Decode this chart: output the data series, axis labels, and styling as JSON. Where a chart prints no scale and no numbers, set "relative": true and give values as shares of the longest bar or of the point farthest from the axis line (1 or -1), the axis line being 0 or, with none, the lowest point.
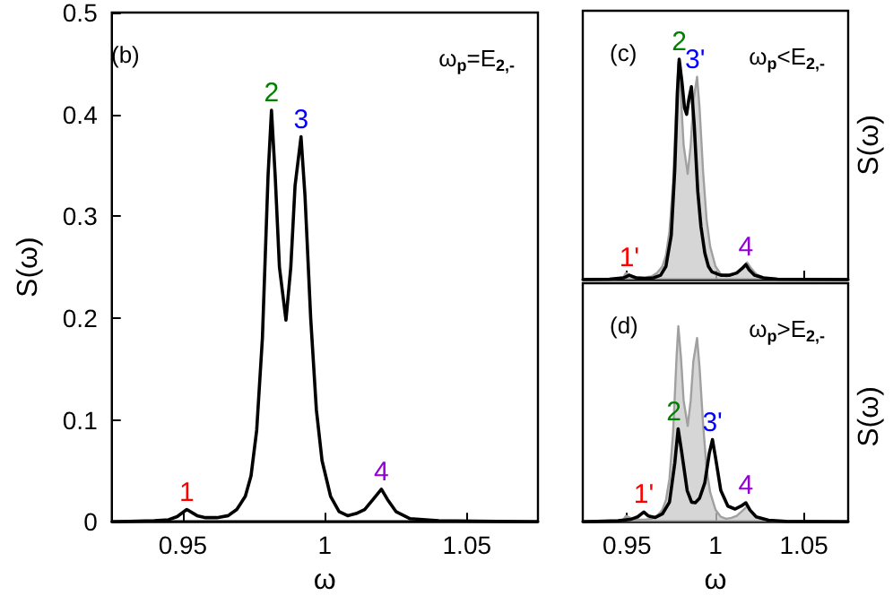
{
  "chart_data": [
    {
      "type": "line",
      "title": "(b)",
      "subtitle": "ω$_{p}$=E$_{2,-}$",
      "xlabel": "ω",
      "ylabel": "S(ω)",
      "xlim": [
        0.925,
        1.075
      ],
      "xticks": [
        0.95,
        1,
        1.05
      ],
      "ylim": [
        0,
        0.5
      ],
      "yticks": [
        0,
        0.1,
        0.2,
        0.3,
        0.4,
        0.5
      ],
      "series": [
        {
          "color": "#000000",
          "x": [
            0.925,
            0.94,
            0.945,
            0.948,
            0.9514,
            0.955,
            0.958,
            0.962,
            0.966,
            0.969,
            0.972,
            0.974,
            0.976,
            0.978,
            0.979,
            0.98,
            0.9812,
            0.9825,
            0.984,
            0.9863,
            0.988,
            0.9895,
            0.9916,
            0.993,
            0.995,
            0.997,
            0.999,
            1.002,
            1.005,
            1.008,
            1.011,
            1.014,
            1.017,
            1.0199,
            1.022,
            1.025,
            1.03,
            1.04,
            1.075
          ],
          "values": [
            0,
            0.001,
            0.002,
            0.005,
            0.012,
            0.006,
            0.004,
            0.004,
            0.006,
            0.012,
            0.025,
            0.045,
            0.09,
            0.18,
            0.26,
            0.34,
            0.404,
            0.34,
            0.25,
            0.198,
            0.25,
            0.33,
            0.378,
            0.32,
            0.2,
            0.11,
            0.06,
            0.025,
            0.01,
            0.006,
            0.008,
            0.012,
            0.022,
            0.032,
            0.022,
            0.01,
            0.003,
            0.001,
            0
          ]
        }
      ],
      "annotations": [
        {
          "text": "1",
          "x": 0.9514,
          "y": 0.012
        },
        {
          "text": "2",
          "x": 0.9812,
          "y": 0.404
        },
        {
          "text": "3",
          "x": 0.9916,
          "y": 0.378
        },
        {
          "text": "4",
          "x": 1.0199,
          "y": 0.032
        }
      ]
    },
    {
      "type": "line",
      "title": "(c)",
      "subtitle": "ω$_{p}$<E$_{2,-}$",
      "ylabel": "S(ω)",
      "relative": true,
      "tick_labels": false,
      "xlim": [
        0.925,
        1.075
      ],
      "xticks": [
        0.95,
        1,
        1.05
      ],
      "series": [
        {
          "type": "area",
          "color": "#c8c8c8",
          "x": [
            0.925,
            0.94,
            0.945,
            0.948,
            0.9494,
            0.953,
            0.956,
            0.96,
            0.964,
            0.967,
            0.97,
            0.972,
            0.974,
            0.976,
            0.977,
            0.978,
            0.979,
            0.9805,
            0.982,
            0.9843,
            0.986,
            0.9875,
            0.9896,
            0.991,
            0.993,
            0.995,
            0.997,
            1.0,
            1.003,
            1.006,
            1.009,
            1.012,
            1.015,
            1.0179,
            1.02,
            1.023,
            1.028,
            1.038,
            1.075
          ],
          "values": [
            0,
            0.002,
            0.005,
            0.012,
            0.03,
            0.015,
            0.01,
            0.01,
            0.015,
            0.03,
            0.06,
            0.11,
            0.22,
            0.44,
            0.63,
            0.83,
            0.985,
            0.83,
            0.61,
            0.48,
            0.61,
            0.81,
            0.92,
            0.78,
            0.49,
            0.27,
            0.15,
            0.06,
            0.025,
            0.015,
            0.02,
            0.03,
            0.053,
            0.078,
            0.053,
            0.025,
            0.007,
            0.002,
            0
          ]
        },
        {
          "color": "#000000",
          "x": [
            0.925,
            0.94,
            0.948,
            0.9513,
            0.955,
            0.96,
            0.965,
            0.969,
            0.972,
            0.975,
            0.977,
            0.9785,
            0.9795,
            0.981,
            0.9825,
            0.9837,
            0.985,
            0.9864,
            0.988,
            0.99,
            0.9918,
            0.994,
            0.996,
            0.998,
            1.003,
            1.008,
            1.012,
            1.015,
            1.0172,
            1.019,
            1.022,
            1.027,
            1.035,
            1.075
          ],
          "values": [
            0,
            0.002,
            0.008,
            0.02,
            0.008,
            0.005,
            0.008,
            0.02,
            0.06,
            0.2,
            0.5,
            0.85,
            1.0,
            0.9,
            0.78,
            0.75,
            0.82,
            0.875,
            0.7,
            0.4,
            0.24,
            0.12,
            0.06,
            0.035,
            0.02,
            0.02,
            0.03,
            0.05,
            0.068,
            0.045,
            0.02,
            0.008,
            0.002,
            0
          ]
        }
      ],
      "annotations": [
        {
          "text": "1'",
          "x": 0.9513,
          "y": 0.02
        },
        {
          "text": "2",
          "x": 0.9795,
          "y": 1.0
        },
        {
          "text": "3'",
          "x": 0.9885,
          "y": 0.92
        },
        {
          "text": "4",
          "x": 1.0172,
          "y": 0.068
        }
      ]
    },
    {
      "type": "line",
      "title": "(d)",
      "subtitle": "ω$_{p}$>E$_{2,-}$",
      "xlabel": "ω",
      "ylabel": "S(ω)",
      "relative": true,
      "tick_labels": "x",
      "xlim": [
        0.925,
        1.075
      ],
      "xticks": [
        0.95,
        1,
        1.05
      ],
      "series": [
        {
          "type": "area",
          "color": "#c8c8c8",
          "x": [
            0.925,
            0.94,
            0.945,
            0.948,
            0.9494,
            0.953,
            0.956,
            0.96,
            0.964,
            0.967,
            0.97,
            0.972,
            0.974,
            0.976,
            0.977,
            0.978,
            0.979,
            0.9805,
            0.982,
            0.9843,
            0.986,
            0.9875,
            0.9896,
            0.991,
            0.993,
            0.995,
            0.997,
            1.0,
            1.003,
            1.006,
            1.009,
            1.012,
            1.015,
            1.0179,
            1.02,
            1.023,
            1.028,
            1.038,
            1.075
          ],
          "values": [
            0,
            0.002,
            0.005,
            0.012,
            0.03,
            0.015,
            0.01,
            0.01,
            0.015,
            0.03,
            0.062,
            0.11,
            0.22,
            0.45,
            0.64,
            0.84,
            1.0,
            0.84,
            0.62,
            0.49,
            0.62,
            0.82,
            0.94,
            0.79,
            0.5,
            0.27,
            0.15,
            0.062,
            0.025,
            0.015,
            0.02,
            0.03,
            0.054,
            0.079,
            0.054,
            0.025,
            0.007,
            0.002,
            0
          ]
        },
        {
          "color": "#000000",
          "x": [
            0.925,
            0.945,
            0.952,
            0.956,
            0.9595,
            0.962,
            0.966,
            0.97,
            0.974,
            0.977,
            0.9789,
            0.981,
            0.984,
            0.9865,
            0.9886,
            0.991,
            0.994,
            0.9965,
            0.9983,
            1.0,
            1.003,
            1.007,
            1.011,
            1.0145,
            1.0172,
            1.0195,
            1.023,
            1.03,
            1.04,
            1.075
          ],
          "values": [
            0,
            0.005,
            0.012,
            0.025,
            0.05,
            0.03,
            0.022,
            0.04,
            0.1,
            0.3,
            0.475,
            0.35,
            0.16,
            0.1,
            0.097,
            0.12,
            0.2,
            0.35,
            0.42,
            0.33,
            0.16,
            0.08,
            0.065,
            0.08,
            0.097,
            0.06,
            0.025,
            0.008,
            0.002,
            0
          ]
        }
      ],
      "annotations": [
        {
          "text": "1'",
          "x": 0.9595,
          "y": 0.05
        },
        {
          "text": "2",
          "x": 0.9765,
          "y": 0.475
        },
        {
          "text": "3'",
          "x": 0.9983,
          "y": 0.42
        },
        {
          "text": "4",
          "x": 1.0172,
          "y": 0.097
        }
      ]
    }
  ]
}
